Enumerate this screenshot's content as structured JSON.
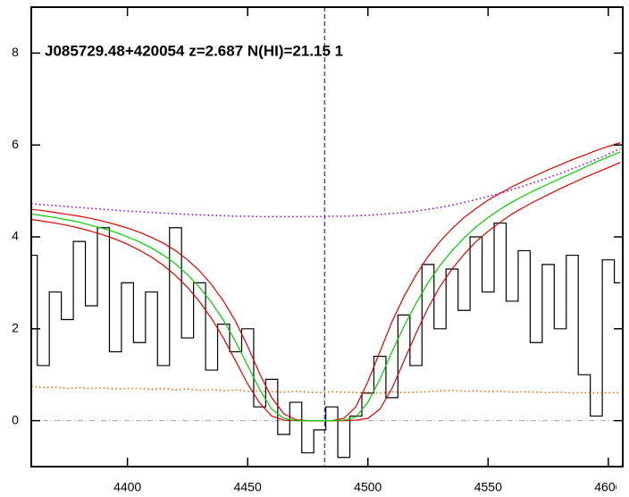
{
  "chart_data": {
    "type": "line",
    "title": "J085729.48+420054 z=2.687 N(HI)=21.15 1",
    "x": [
      4360,
      4365,
      4370,
      4375,
      4380,
      4385,
      4390,
      4395,
      4400,
      4405,
      4410,
      4415,
      4420,
      4425,
      4430,
      4435,
      4440,
      4445,
      4450,
      4455,
      4460,
      4465,
      4470,
      4475,
      4480,
      4485,
      4490,
      4495,
      4500,
      4505,
      4510,
      4515,
      4520,
      4525,
      4530,
      4535,
      4540,
      4545,
      4550,
      4555,
      4560,
      4565,
      4570,
      4575,
      4580,
      4585,
      4590,
      4595,
      4600,
      4605
    ],
    "series": [
      {
        "color": "#000000",
        "style": "steps",
        "values": [
          3.6,
          1.2,
          2.8,
          2.2,
          3.9,
          2.5,
          4.2,
          1.5,
          3.0,
          1.7,
          2.8,
          1.2,
          4.2,
          1.8,
          3.0,
          1.1,
          2.1,
          1.5,
          2.0,
          0.3,
          0.9,
          -0.3,
          0.4,
          -0.7,
          -0.2,
          0.3,
          -0.8,
          0.1,
          0.6,
          1.4,
          0.5,
          2.3,
          1.2,
          3.4,
          2.0,
          3.3,
          2.4,
          4.0,
          2.8,
          4.3,
          2.6,
          3.7,
          1.7,
          3.4,
          2.0,
          3.6,
          1.0,
          0.1,
          3.5,
          3.0
        ]
      },
      {
        "color": "#ff6a00",
        "style": "dotted",
        "values": [
          0.75,
          0.72,
          0.73,
          0.7,
          0.72,
          0.7,
          0.71,
          0.69,
          0.7,
          0.7,
          0.68,
          0.7,
          0.67,
          0.69,
          0.66,
          0.68,
          0.65,
          0.67,
          0.64,
          0.65,
          0.63,
          0.62,
          0.64,
          0.62,
          0.61,
          0.63,
          0.62,
          0.61,
          0.62,
          0.6,
          0.63,
          0.61,
          0.62,
          0.63,
          0.65,
          0.66,
          0.64,
          0.65,
          0.63,
          0.64,
          0.62,
          0.63,
          0.62,
          0.61,
          0.62,
          0.6,
          0.61,
          0.6,
          0.61,
          0.6
        ]
      },
      {
        "color": "#9900ff",
        "style": "dotted",
        "values": [
          4.72,
          4.7,
          4.68,
          4.66,
          4.64,
          4.62,
          4.6,
          4.58,
          4.56,
          4.55,
          4.53,
          4.52,
          4.5,
          4.49,
          4.48,
          4.47,
          4.46,
          4.45,
          4.45,
          4.44,
          4.44,
          4.44,
          4.44,
          4.44,
          4.44,
          4.45,
          4.45,
          4.46,
          4.47,
          4.49,
          4.51,
          4.53,
          4.56,
          4.6,
          4.64,
          4.69,
          4.75,
          4.81,
          4.88,
          4.95,
          5.03,
          5.11,
          5.2,
          5.29,
          5.38,
          5.48,
          5.58,
          5.69,
          5.8,
          5.92
        ]
      },
      {
        "color": "#e00000",
        "style": "solid",
        "values": [
          4.6,
          4.57,
          4.53,
          4.49,
          4.45,
          4.4,
          4.34,
          4.27,
          4.19,
          4.1,
          3.99,
          3.86,
          3.7,
          3.5,
          3.26,
          2.96,
          2.6,
          2.16,
          1.62,
          1.02,
          0.5,
          0.15,
          0.02,
          0,
          0,
          0,
          0.05,
          0.3,
          0.85,
          1.5,
          2.15,
          2.7,
          3.17,
          3.57,
          3.9,
          4.18,
          4.42,
          4.62,
          4.8,
          4.95,
          5.09,
          5.22,
          5.34,
          5.46,
          5.57,
          5.68,
          5.78,
          5.88,
          5.97,
          6.05
        ]
      },
      {
        "color": "#e00000",
        "style": "solid",
        "values": [
          4.38,
          4.34,
          4.3,
          4.25,
          4.19,
          4.12,
          4.04,
          3.95,
          3.84,
          3.71,
          3.56,
          3.38,
          3.16,
          2.9,
          2.59,
          2.22,
          1.79,
          1.3,
          0.8,
          0.38,
          0.1,
          0.01,
          0,
          0,
          0,
          0,
          0,
          0.01,
          0.05,
          0.25,
          0.7,
          1.3,
          1.9,
          2.45,
          2.92,
          3.3,
          3.62,
          3.9,
          4.12,
          4.32,
          4.5,
          4.65,
          4.79,
          4.92,
          5.05,
          5.17,
          5.29,
          5.4,
          5.51,
          5.62
        ]
      },
      {
        "color": "#00d000",
        "style": "solid",
        "values": [
          4.5,
          4.46,
          4.42,
          4.37,
          4.32,
          4.25,
          4.18,
          4.1,
          4.0,
          3.89,
          3.76,
          3.6,
          3.41,
          3.18,
          2.9,
          2.57,
          2.18,
          1.72,
          1.2,
          0.68,
          0.25,
          0.05,
          0.0,
          0,
          0,
          0,
          0.01,
          0.08,
          0.4,
          0.9,
          1.5,
          2.05,
          2.55,
          3.0,
          3.38,
          3.7,
          3.98,
          4.22,
          4.42,
          4.6,
          4.76,
          4.9,
          5.03,
          5.15,
          5.27,
          5.39,
          5.51,
          5.63,
          5.74,
          5.85
        ]
      }
    ],
    "hline": {
      "value": 0,
      "color": "#aaaaaa"
    },
    "vline": {
      "value": 4482,
      "color": "#0000cc"
    },
    "xlim": [
      4360,
      4606
    ],
    "ylim": [
      -1,
      9
    ],
    "xticks": [
      4400,
      4450,
      4500,
      4550,
      4600
    ],
    "yticks": [
      0,
      2,
      4,
      6,
      8
    ]
  }
}
